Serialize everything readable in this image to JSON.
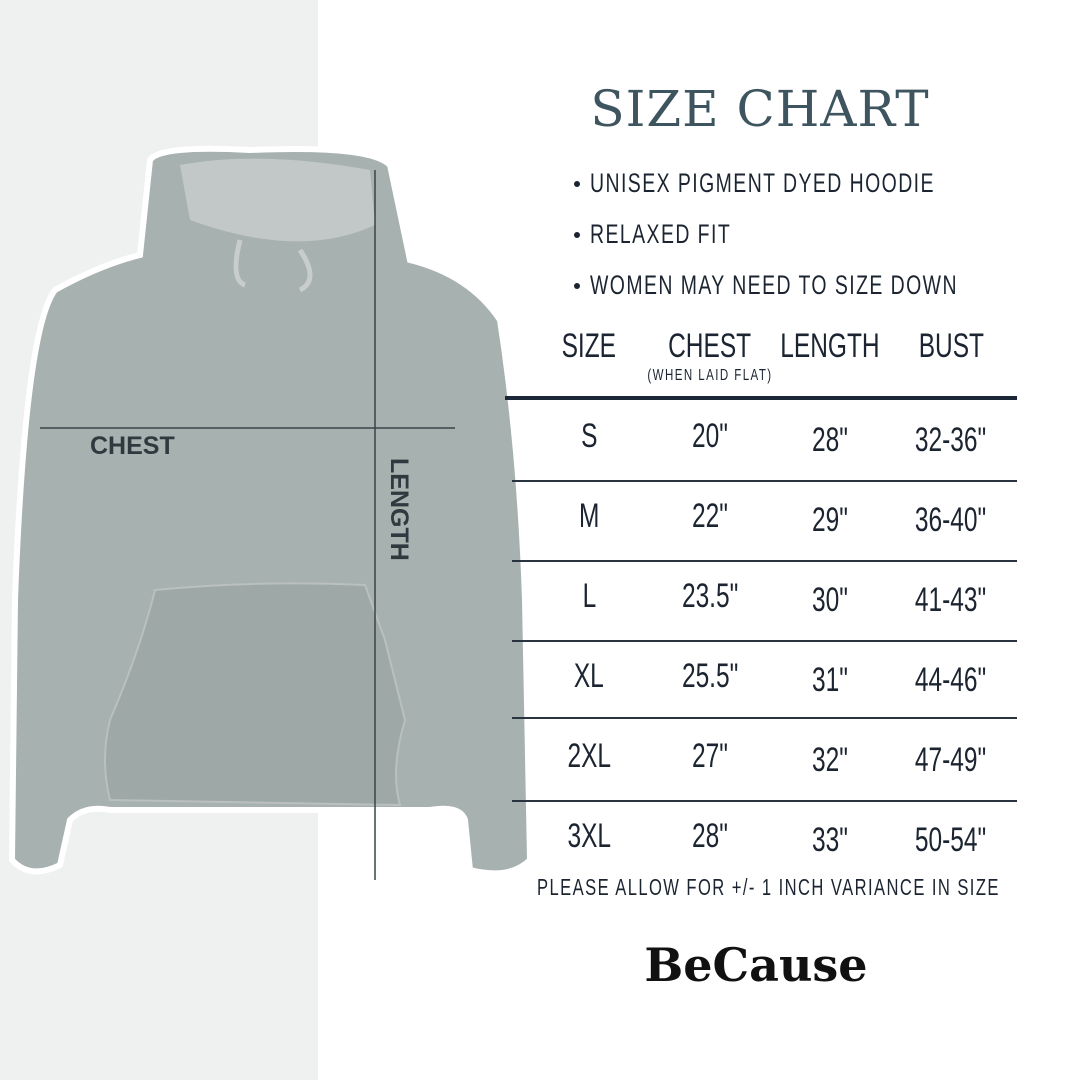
{
  "title": "SIZE CHART",
  "bullets": [
    "UNISEX PIGMENT DYED HOODIE",
    "RELAXED FIT",
    "WOMEN MAY NEED TO SIZE DOWN"
  ],
  "table": {
    "headers": [
      "SIZE",
      "CHEST",
      "LENGTH",
      "BUST"
    ],
    "chest_note": "(WHEN LAID FLAT)",
    "rows": [
      [
        "S",
        "20\"",
        "28\"",
        "32-36\""
      ],
      [
        "M",
        "22\"",
        "29\"",
        "36-40\""
      ],
      [
        "L",
        "23.5\"",
        "30\"",
        "41-43\""
      ],
      [
        "XL",
        "25.5\"",
        "31\"",
        "44-46\""
      ],
      [
        "2XL",
        "27\"",
        "32\"",
        "47-49\""
      ],
      [
        "3XL",
        "28\"",
        "33\"",
        "50-54\""
      ]
    ]
  },
  "note": "PLEASE ALLOW FOR +/- 1 INCH VARIANCE IN SIZE",
  "brand": "BeCause",
  "image": {
    "chest_label": "CHEST",
    "length_label": "LENGTH",
    "hoodie_color": "#a7b1af",
    "text_color": "#1b2430",
    "title_color": "#3e5560"
  }
}
